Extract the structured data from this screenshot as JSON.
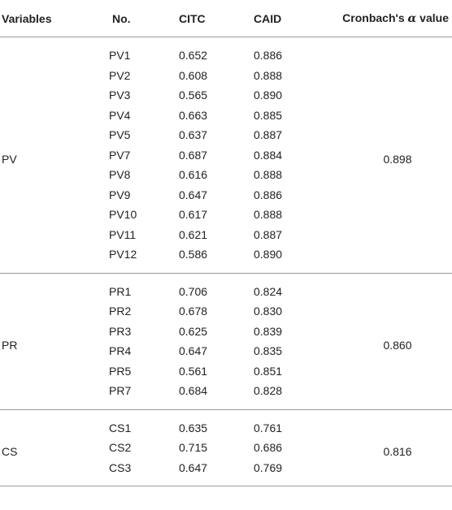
{
  "table": {
    "headers": {
      "variables": "Variables",
      "no": "No.",
      "citc": "CITC",
      "caid": "CAID",
      "alpha_prefix": "Cronbach's ",
      "alpha_symbol": "α",
      "alpha_suffix": " value"
    },
    "groups": [
      {
        "variable": "PV",
        "alpha": "0.898",
        "rows": [
          {
            "no": "PV1",
            "citc": "0.652",
            "caid": "0.886"
          },
          {
            "no": "PV2",
            "citc": "0.608",
            "caid": "0.888"
          },
          {
            "no": "PV3",
            "citc": "0.565",
            "caid": "0.890"
          },
          {
            "no": "PV4",
            "citc": "0.663",
            "caid": "0.885"
          },
          {
            "no": "PV5",
            "citc": "0.637",
            "caid": "0.887"
          },
          {
            "no": "PV7",
            "citc": "0.687",
            "caid": "0.884"
          },
          {
            "no": "PV8",
            "citc": "0.616",
            "caid": "0.888"
          },
          {
            "no": "PV9",
            "citc": "0.647",
            "caid": "0.886"
          },
          {
            "no": "PV10",
            "citc": "0.617",
            "caid": "0.888"
          },
          {
            "no": "PV11",
            "citc": "0.621",
            "caid": "0.887"
          },
          {
            "no": "PV12",
            "citc": "0.586",
            "caid": "0.890"
          }
        ]
      },
      {
        "variable": "PR",
        "alpha": "0.860",
        "rows": [
          {
            "no": "PR1",
            "citc": "0.706",
            "caid": "0.824"
          },
          {
            "no": "PR2",
            "citc": "0.678",
            "caid": "0.830"
          },
          {
            "no": "PR3",
            "citc": "0.625",
            "caid": "0.839"
          },
          {
            "no": "PR4",
            "citc": "0.647",
            "caid": "0.835"
          },
          {
            "no": "PR5",
            "citc": "0.561",
            "caid": "0.851"
          },
          {
            "no": "PR7",
            "citc": "0.684",
            "caid": "0.828"
          }
        ]
      },
      {
        "variable": "CS",
        "alpha": "0.816",
        "rows": [
          {
            "no": "CS1",
            "citc": "0.635",
            "caid": "0.761"
          },
          {
            "no": "CS2",
            "citc": "0.715",
            "caid": "0.686"
          },
          {
            "no": "CS3",
            "citc": "0.647",
            "caid": "0.769"
          }
        ]
      }
    ]
  }
}
